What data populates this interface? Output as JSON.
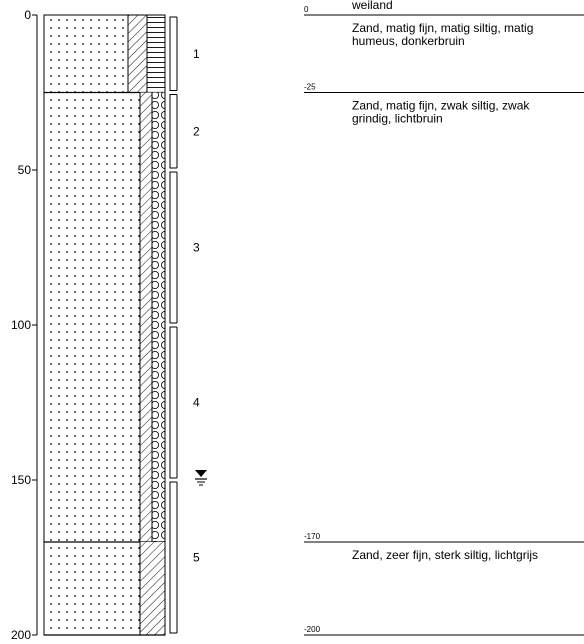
{
  "depth_axis": {
    "ticks": [
      {
        "value": 0,
        "label": "0"
      },
      {
        "value": 50,
        "label": "50"
      },
      {
        "value": 100,
        "label": "100"
      },
      {
        "value": 150,
        "label": "150"
      },
      {
        "value": 200,
        "label": "200"
      }
    ],
    "range": [
      0,
      200
    ]
  },
  "column": {
    "layers": [
      {
        "top": 0,
        "bottom": 25,
        "pattern": "sand-dots",
        "bands": [
          "hatch-diagonal",
          "hatch-horizontal"
        ]
      },
      {
        "top": 25,
        "bottom": 170,
        "pattern": "sand-dots",
        "bands": [
          "hatch-diagonal",
          "gravel-circles"
        ]
      },
      {
        "top": 170,
        "bottom": 200,
        "pattern": "sand-dots",
        "bands": [
          "hatch-diagonal"
        ]
      }
    ]
  },
  "samples": [
    {
      "label": "1",
      "top": 0,
      "bottom": 25
    },
    {
      "label": "2",
      "top": 25,
      "bottom": 50
    },
    {
      "label": "3",
      "top": 50,
      "bottom": 100
    },
    {
      "label": "4",
      "top": 100,
      "bottom": 150
    },
    {
      "label": "5",
      "top": 150,
      "bottom": 200
    }
  ],
  "groundwater": {
    "depth": 150,
    "symbol": "groundwater-level-icon"
  },
  "surface": {
    "label": "weiland"
  },
  "descriptions": [
    {
      "depth_label": "0",
      "depth": 0,
      "text_lines": [
        "Zand, matig fijn, matig siltig, matig",
        "humeus, donkerbruin"
      ]
    },
    {
      "depth_label": "-25",
      "depth": 25,
      "text_lines": [
        "Zand, matig fijn, zwak siltig, zwak",
        "grindig, lichtbruin"
      ]
    },
    {
      "depth_label": "-170",
      "depth": 170,
      "text_lines": [
        "Zand, zeer fijn, sterk siltig, lichtgrijs"
      ]
    },
    {
      "depth_label": "-200",
      "depth": 200,
      "text_lines": []
    }
  ]
}
